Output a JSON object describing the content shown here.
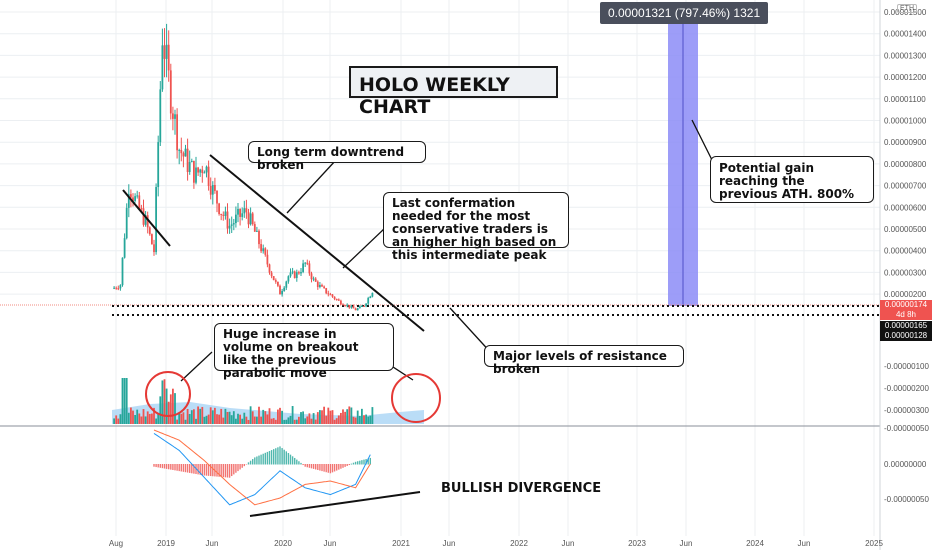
{
  "colors": {
    "up": "#26a69a",
    "down": "#ef5350",
    "vol_up": "#26a69a",
    "vol_down": "#ef5350",
    "vol_ma": "#a9d4f5",
    "projection": "#8c8cf7",
    "macd": "#2196f3",
    "signal": "#ff7043",
    "circle": "#e53935",
    "current_price_line": "#f28b82"
  },
  "annotations": {
    "title": "HOLO WEEKLY CHART",
    "downtrend": "Long term downtrend broken",
    "confirmation": "Last confermation needed for the most conservative traders is an higher high based on this intermediate peak",
    "potential_gain": "Potential gain reaching the previous ATH. 800%",
    "volume": "Huge increase in volume on breakout like the previous parabolic move",
    "resistance": "Major levels of resistance broken",
    "divergence": "BULLISH DIVERGENCE",
    "measure": "0.00001321 (797.46%) 1321",
    "eth_badge": "ETH"
  },
  "price_tags": {
    "current": "0.00000174",
    "countdown": "4d 8h",
    "level1": "0.00000165",
    "level2": "0.00000128"
  },
  "chart_data": [
    {
      "type": "candlestick",
      "title": "HOLO WEEKLY CHART",
      "ylim": [
        0.0,
        1.5e-05
      ],
      "y_ticks": [
        "0.00001500",
        "0.00001400",
        "0.00001300",
        "0.00001200",
        "0.00001100",
        "0.00001000",
        "0.00000900",
        "0.00000800",
        "0.00000700",
        "0.00000600",
        "0.00000500",
        "0.00000400",
        "0.00000300",
        "0.00000200"
      ],
      "x_ticks": [
        "Aug",
        "2019",
        "Jun",
        "2020",
        "Jun",
        "2021",
        "Jun",
        "2022",
        "Jun",
        "2023",
        "Jun",
        "2024",
        "Jun",
        "2025"
      ],
      "close_path": [
        [
          "2018-07",
          1.8e-06
        ],
        [
          "2018-08",
          2e-06
        ],
        [
          "2018-09",
          6.8e-06
        ],
        [
          "2018-10",
          5.8e-06
        ],
        [
          "2018-11",
          5e-06
        ],
        [
          "2018-12",
          3.6e-06
        ],
        [
          "2019-01",
          1.4e-05
        ],
        [
          "2019-02",
          1.1e-05
        ],
        [
          "2019-03",
          8.5e-06
        ],
        [
          "2019-04",
          7.8e-06
        ],
        [
          "2019-05",
          7.2e-06
        ],
        [
          "2019-06",
          7.8e-06
        ],
        [
          "2019-07",
          6.5e-06
        ],
        [
          "2019-08",
          5.5e-06
        ],
        [
          "2019-09",
          4.8e-06
        ],
        [
          "2019-10",
          5.2e-06
        ],
        [
          "2019-11",
          5.5e-06
        ],
        [
          "2019-12",
          4.5e-06
        ],
        [
          "2020-01",
          3.5e-06
        ],
        [
          "2020-02",
          2.5e-06
        ],
        [
          "2020-03",
          1.6e-06
        ],
        [
          "2020-04",
          2.4e-06
        ],
        [
          "2020-05",
          2.5e-06
        ],
        [
          "2020-06",
          3e-06
        ],
        [
          "2020-07",
          2.2e-06
        ],
        [
          "2020-08",
          1.8e-06
        ],
        [
          "2020-09",
          1.5e-06
        ],
        [
          "2020-10",
          1.2e-06
        ],
        [
          "2020-11",
          1e-06
        ],
        [
          "2020-12",
          8e-07
        ],
        [
          "2021-01",
          1e-06
        ],
        [
          "2021-02",
          1.7e-06
        ]
      ],
      "projection": {
        "from": "2023-10",
        "to": "2023-12",
        "low": 1.7e-06,
        "high": 1.5e-05,
        "gain_pct": 797.46
      },
      "levels": [
        1.65e-06,
        1.28e-06
      ],
      "current_price": 1.74e-06
    },
    {
      "type": "bar",
      "name": "Volume",
      "y_ticks": [
        "-0.00000100",
        "-0.00000200",
        "-0.00000300"
      ]
    },
    {
      "type": "histogram",
      "name": "MACD",
      "y_ticks": [
        "-0.00000050",
        "0.00000000",
        "-0.00000050"
      ],
      "x": [
        "2018-12",
        "2019-03",
        "2019-06",
        "2019-09",
        "2019-12",
        "2020-03",
        "2020-06",
        "2020-09",
        "2020-12",
        "2021-02"
      ],
      "macd": [
        0.9,
        0.4,
        -0.4,
        -1.2,
        -0.9,
        -0.2,
        -0.7,
        -0.9,
        -0.6,
        0.4
      ],
      "signal": [
        1.0,
        0.7,
        0.1,
        -0.6,
        -1.2,
        -1.0,
        -0.6,
        -0.5,
        -0.7,
        0.1
      ]
    }
  ]
}
